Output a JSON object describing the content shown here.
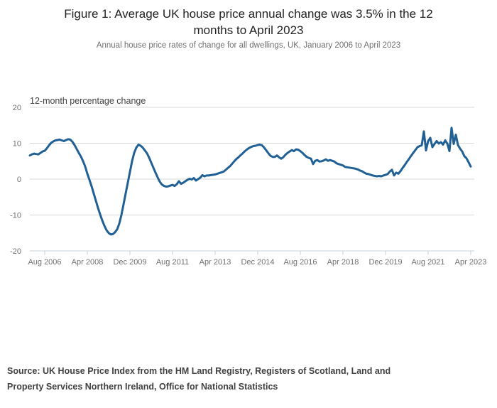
{
  "figure": {
    "title_lines": [
      "Figure 1: Average UK house price annual change was 3.5% in the 12",
      "months to April 2023"
    ],
    "subtitle": "Annual house price rates of change for all dwellings, UK, January 2006 to April 2023",
    "source_lines": [
      "Source: UK House Price Index from the HM Land Registry, Registers of Scotland, Land and",
      "Property Services Northern Ireland, Office for National Statistics"
    ]
  },
  "chart_data": {
    "type": "line",
    "title": "12-month percentage change",
    "xlabel": "",
    "ylabel": "12-month percentage change",
    "x_range": [
      "January 2006",
      "April 2023"
    ],
    "x_frequency": "monthly",
    "x_tick_labels": [
      "Aug 2006",
      "Apr 2008",
      "Dec 2009",
      "Aug 2011",
      "Apr 2013",
      "Dec 2014",
      "Aug 2016",
      "Apr 2018",
      "Dec 2019",
      "Aug 2021",
      "Apr 2023"
    ],
    "x_tick_month_indices": [
      7,
      27,
      47,
      67,
      87,
      107,
      127,
      147,
      167,
      187,
      207
    ],
    "y_ticks": [
      20,
      10,
      0,
      -10,
      -20
    ],
    "ylim": [
      -20,
      20
    ],
    "grid": "horizontal",
    "legend": "none",
    "series": [
      {
        "name": "UK all dwellings annual house price change (%)",
        "start": "2006-01",
        "values": [
          6.6,
          6.9,
          7.1,
          7.0,
          6.9,
          7.3,
          7.7,
          7.9,
          8.6,
          9.4,
          10.1,
          10.5,
          10.8,
          10.9,
          11.0,
          10.8,
          10.6,
          10.9,
          11.1,
          11.0,
          10.4,
          9.5,
          8.4,
          7.3,
          6.3,
          5.0,
          3.5,
          1.5,
          -0.2,
          -2.0,
          -4.0,
          -6.0,
          -8.0,
          -9.8,
          -11.5,
          -13.0,
          -14.2,
          -15.0,
          -15.4,
          -15.3,
          -14.8,
          -14.0,
          -12.4,
          -10.0,
          -7.0,
          -4.0,
          -1.0,
          2.0,
          5.0,
          7.3,
          8.8,
          9.6,
          9.3,
          8.8,
          8.0,
          7.2,
          6.0,
          4.6,
          3.2,
          1.8,
          0.5,
          -0.7,
          -1.5,
          -1.9,
          -2.1,
          -2.0,
          -1.8,
          -1.6,
          -1.9,
          -1.4,
          -0.6,
          -1.3,
          -1.0,
          -0.6,
          -0.2,
          0.1,
          -0.1,
          0.3,
          -0.4,
          0.0,
          0.4,
          1.1,
          0.8,
          1.0,
          1.0,
          1.1,
          1.2,
          1.3,
          1.5,
          1.7,
          1.9,
          2.1,
          2.6,
          3.1,
          3.6,
          4.3,
          5.0,
          5.6,
          6.1,
          6.7,
          7.2,
          7.8,
          8.3,
          8.7,
          9.0,
          9.2,
          9.3,
          9.5,
          9.6,
          9.4,
          8.8,
          8.0,
          7.2,
          6.5,
          6.2,
          6.2,
          6.6,
          6.1,
          5.7,
          6.1,
          6.8,
          7.3,
          7.7,
          8.1,
          7.8,
          8.3,
          8.2,
          7.8,
          7.3,
          6.7,
          6.2,
          5.9,
          5.7,
          4.2,
          5.1,
          5.3,
          4.9,
          5.0,
          5.2,
          5.5,
          5.1,
          5.3,
          5.1,
          4.9,
          4.4,
          4.2,
          4.0,
          3.8,
          3.4,
          3.3,
          3.2,
          3.1,
          3.0,
          2.9,
          2.7,
          2.4,
          2.2,
          1.8,
          1.5,
          1.4,
          1.2,
          1.0,
          0.9,
          0.8,
          0.9,
          0.8,
          1.0,
          1.2,
          1.4,
          2.1,
          2.6,
          1.0,
          1.8,
          1.5,
          2.2,
          3.1,
          3.9,
          4.8,
          5.6,
          6.5,
          7.3,
          8.1,
          8.9,
          9.2,
          9.4,
          13.3,
          8.0,
          10.6,
          11.5,
          8.9,
          9.8,
          10.6,
          9.9,
          10.3,
          9.6,
          10.8,
          9.9,
          7.8,
          14.3,
          9.8,
          12.4,
          9.5,
          8.5,
          7.7,
          6.4,
          5.8,
          4.7,
          3.5
        ]
      }
    ],
    "colors": {
      "line": "#206095",
      "gridline": "#d9d9d9",
      "axis_line": "#c6d0da",
      "tick_label": "#707071",
      "axis_title": "#414042"
    }
  }
}
